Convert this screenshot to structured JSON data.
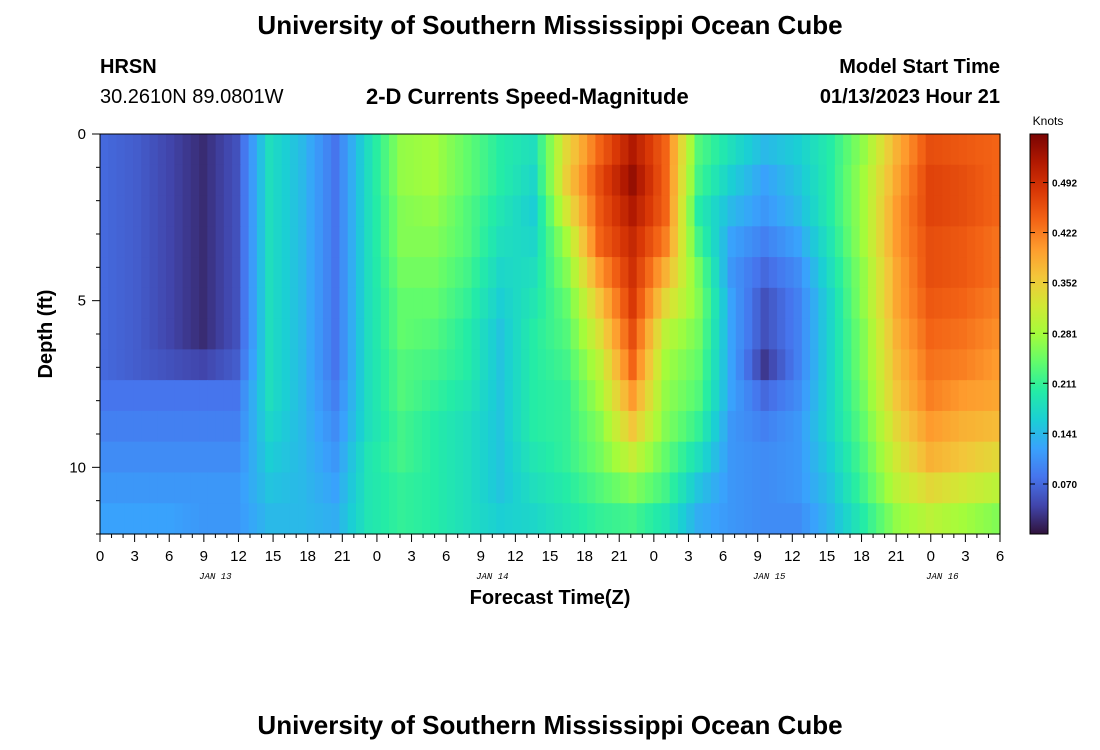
{
  "header": {
    "title": "University of Southern Mississippi Ocean Cube",
    "station": "HRSN",
    "coords": "30.2610N  89.0801W",
    "chart_title": "2-D Currents Speed-Magnitude",
    "model_label": "Model Start Time",
    "model_time": "01/13/2023 Hour 21"
  },
  "footer": {
    "title": "University of Southern Mississippi Ocean Cube"
  },
  "chart_data": {
    "type": "heatmap",
    "xlabel": "Forecast Time(Z)",
    "ylabel": "Depth (ft)",
    "x_ticks": [
      "0",
      "3",
      "6",
      "9",
      "12",
      "15",
      "18",
      "21",
      "0",
      "3",
      "6",
      "9",
      "12",
      "15",
      "18",
      "21",
      "0",
      "3",
      "6",
      "9",
      "12",
      "15",
      "18",
      "21",
      "0",
      "3",
      "6"
    ],
    "day_labels": [
      {
        "label": "JAN 13",
        "hour": 10
      },
      {
        "label": "JAN 14",
        "hour": 34
      },
      {
        "label": "JAN 15",
        "hour": 58
      },
      {
        "label": "JAN 16",
        "hour": 73
      }
    ],
    "x_range_hours": [
      0,
      78
    ],
    "y_ticks": [
      0,
      5,
      10
    ],
    "ylim": [
      0,
      12
    ],
    "colorbar": {
      "unit": "Knots",
      "ticks": [
        "0.070",
        "0.141",
        "0.211",
        "0.281",
        "0.352",
        "0.422",
        "0.492"
      ],
      "range": [
        0.0,
        0.56
      ],
      "colors": [
        "#30123b",
        "#4145ab",
        "#4675ed",
        "#39a2fc",
        "#1bcfd4",
        "#24eca6",
        "#61fc6c",
        "#a4fc3b",
        "#d1e834",
        "#f3c63a",
        "#fe9b2d",
        "#f36315",
        "#d93806",
        "#b11901",
        "#7a0403"
      ]
    },
    "speed_knots": [
      [
        0.07,
        0.06,
        0.04,
        0.02,
        0.05,
        0.18,
        0.14,
        0.08,
        0.18,
        0.27,
        0.28,
        0.24,
        0.2,
        0.18,
        0.34,
        0.44,
        0.52,
        0.44,
        0.23,
        0.18,
        0.14,
        0.16,
        0.2,
        0.27,
        0.38,
        0.46,
        0.45,
        0.44
      ],
      [
        0.07,
        0.06,
        0.04,
        0.02,
        0.05,
        0.18,
        0.14,
        0.08,
        0.18,
        0.27,
        0.28,
        0.24,
        0.2,
        0.17,
        0.35,
        0.46,
        0.54,
        0.44,
        0.22,
        0.16,
        0.12,
        0.15,
        0.2,
        0.28,
        0.39,
        0.47,
        0.46,
        0.44
      ],
      [
        0.07,
        0.06,
        0.04,
        0.02,
        0.05,
        0.18,
        0.14,
        0.08,
        0.18,
        0.26,
        0.27,
        0.23,
        0.19,
        0.16,
        0.32,
        0.45,
        0.52,
        0.44,
        0.2,
        0.14,
        0.11,
        0.14,
        0.2,
        0.28,
        0.4,
        0.47,
        0.46,
        0.44
      ],
      [
        0.07,
        0.06,
        0.04,
        0.02,
        0.05,
        0.18,
        0.14,
        0.08,
        0.18,
        0.26,
        0.26,
        0.23,
        0.18,
        0.17,
        0.28,
        0.44,
        0.5,
        0.42,
        0.22,
        0.12,
        0.09,
        0.12,
        0.19,
        0.28,
        0.4,
        0.46,
        0.45,
        0.43
      ],
      [
        0.07,
        0.06,
        0.04,
        0.02,
        0.05,
        0.18,
        0.14,
        0.08,
        0.18,
        0.25,
        0.25,
        0.22,
        0.17,
        0.18,
        0.26,
        0.4,
        0.49,
        0.38,
        0.25,
        0.11,
        0.07,
        0.1,
        0.18,
        0.27,
        0.39,
        0.46,
        0.45,
        0.43
      ],
      [
        0.07,
        0.06,
        0.04,
        0.02,
        0.05,
        0.18,
        0.14,
        0.08,
        0.18,
        0.24,
        0.24,
        0.21,
        0.16,
        0.19,
        0.24,
        0.36,
        0.48,
        0.34,
        0.26,
        0.12,
        0.05,
        0.09,
        0.17,
        0.27,
        0.39,
        0.45,
        0.44,
        0.42
      ],
      [
        0.07,
        0.06,
        0.04,
        0.02,
        0.05,
        0.18,
        0.14,
        0.08,
        0.18,
        0.24,
        0.23,
        0.2,
        0.15,
        0.2,
        0.23,
        0.33,
        0.46,
        0.3,
        0.25,
        0.12,
        0.05,
        0.09,
        0.17,
        0.26,
        0.38,
        0.44,
        0.43,
        0.41
      ],
      [
        0.07,
        0.06,
        0.05,
        0.04,
        0.06,
        0.18,
        0.14,
        0.08,
        0.18,
        0.23,
        0.22,
        0.2,
        0.15,
        0.2,
        0.22,
        0.3,
        0.44,
        0.28,
        0.24,
        0.12,
        0.03,
        0.09,
        0.17,
        0.26,
        0.37,
        0.43,
        0.42,
        0.4
      ],
      [
        0.08,
        0.08,
        0.08,
        0.08,
        0.08,
        0.18,
        0.14,
        0.09,
        0.18,
        0.23,
        0.21,
        0.19,
        0.15,
        0.2,
        0.21,
        0.28,
        0.4,
        0.27,
        0.23,
        0.12,
        0.07,
        0.1,
        0.17,
        0.25,
        0.36,
        0.42,
        0.4,
        0.39
      ],
      [
        0.09,
        0.09,
        0.09,
        0.09,
        0.09,
        0.17,
        0.14,
        0.1,
        0.18,
        0.22,
        0.2,
        0.18,
        0.15,
        0.2,
        0.21,
        0.26,
        0.36,
        0.26,
        0.21,
        0.11,
        0.09,
        0.11,
        0.17,
        0.24,
        0.34,
        0.4,
        0.38,
        0.37
      ],
      [
        0.1,
        0.1,
        0.1,
        0.1,
        0.1,
        0.16,
        0.14,
        0.11,
        0.19,
        0.22,
        0.2,
        0.18,
        0.15,
        0.19,
        0.21,
        0.25,
        0.31,
        0.24,
        0.18,
        0.11,
        0.1,
        0.11,
        0.16,
        0.23,
        0.32,
        0.38,
        0.36,
        0.34
      ],
      [
        0.11,
        0.11,
        0.11,
        0.11,
        0.11,
        0.15,
        0.14,
        0.12,
        0.19,
        0.21,
        0.2,
        0.18,
        0.15,
        0.18,
        0.2,
        0.23,
        0.26,
        0.22,
        0.15,
        0.11,
        0.1,
        0.11,
        0.15,
        0.22,
        0.3,
        0.34,
        0.32,
        0.3
      ],
      [
        0.12,
        0.12,
        0.12,
        0.11,
        0.11,
        0.14,
        0.14,
        0.13,
        0.19,
        0.21,
        0.2,
        0.18,
        0.16,
        0.17,
        0.19,
        0.21,
        0.22,
        0.19,
        0.13,
        0.11,
        0.1,
        0.1,
        0.14,
        0.2,
        0.27,
        0.3,
        0.28,
        0.26
      ]
    ]
  }
}
